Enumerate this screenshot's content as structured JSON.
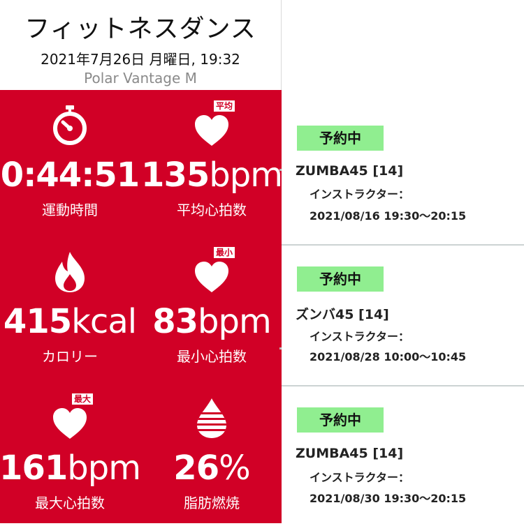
{
  "header": {
    "title": "フィットネスダンス",
    "datetime": "2021年7月26日 月曜日, 19:32",
    "device": "Polar Vantage M"
  },
  "stats": [
    {
      "icon": "stopwatch-icon",
      "value": "0:44:51",
      "unit": "",
      "label": "運動時間"
    },
    {
      "icon": "heart-icon",
      "badge": "平均",
      "value": "135",
      "unit": "bpm",
      "label": "平均心拍数"
    },
    {
      "icon": "flame-icon",
      "value": "415",
      "unit": "kcal",
      "label": "カロリー"
    },
    {
      "icon": "heart-icon",
      "badge": "最小",
      "value": "83",
      "unit": "bpm",
      "label": "最小心拍数"
    },
    {
      "icon": "heart-icon",
      "badge": "最大",
      "value": "161",
      "unit": "bpm",
      "label": "最大心拍数"
    },
    {
      "icon": "fat-drop-icon",
      "value": "26",
      "unit": "%",
      "label": "脂肪燃焼"
    }
  ],
  "reservations": [
    {
      "status": "予約中",
      "title": "ZUMBA45 [14]",
      "instructor": "インストラクター：",
      "time": "2021/08/16 19:30～20:15"
    },
    {
      "status": "予約中",
      "title": "ズンバ45 [14]",
      "instructor": "インストラクター：",
      "time": "2021/08/28 10:00～10:45"
    },
    {
      "status": "予約中",
      "title": "ZUMBA45 [14]",
      "instructor": "インストラクター：",
      "time": "2021/08/30 19:30～20:15"
    }
  ],
  "colors": {
    "accent": "#d10026",
    "status_bg": "#90ee90",
    "divider": "#ccd3d3"
  }
}
